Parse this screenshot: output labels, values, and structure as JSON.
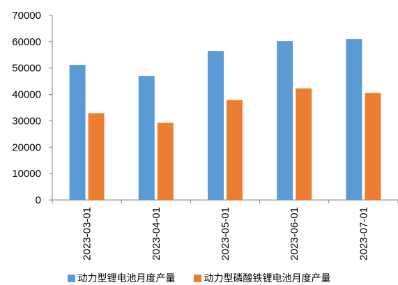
{
  "chart_data": {
    "type": "bar",
    "categories": [
      "2023-03-01",
      "2023-04-01",
      "2023-05-01",
      "2023-06-01",
      "2023-07-01"
    ],
    "series": [
      {
        "name": "动力型锂电池月度产量",
        "color": "#5B9BD5",
        "values": [
          51200,
          47000,
          56500,
          60200,
          61000
        ]
      },
      {
        "name": "动力型磷酸铁锂电池月度产量",
        "color": "#ED7D31",
        "values": [
          32900,
          29300,
          37900,
          42300,
          40600
        ]
      }
    ],
    "yticks": [
      "0",
      "10000",
      "20000",
      "30000",
      "40000",
      "50000",
      "60000",
      "70000"
    ],
    "ylim": [
      0,
      70000
    ],
    "legend_position": "bottom",
    "grid": false
  }
}
